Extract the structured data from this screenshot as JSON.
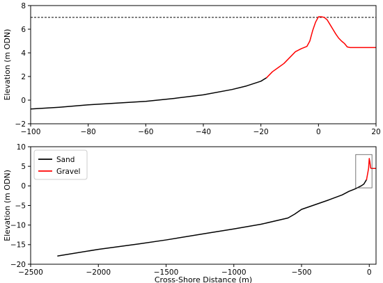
{
  "chart_data": [
    {
      "type": "line",
      "title": "",
      "xlabel": "",
      "ylabel": "Elevation (m ODN)",
      "xlim": [
        -100,
        20
      ],
      "ylim": [
        -2,
        8
      ],
      "xticks": [
        -100,
        -80,
        -60,
        -40,
        -20,
        0,
        20
      ],
      "yticks": [
        -2,
        0,
        2,
        4,
        6,
        8
      ],
      "grid": false,
      "reference_line": {
        "y": 7.0,
        "style": "dashed",
        "color": "#000000"
      },
      "series": [
        {
          "color": "#000000",
          "x": [
            -100,
            -90,
            -80,
            -70,
            -60,
            -50,
            -40,
            -30,
            -25,
            -20,
            -18
          ],
          "y": [
            -0.75,
            -0.6,
            -0.4,
            -0.25,
            -0.1,
            0.15,
            0.45,
            0.9,
            1.2,
            1.6,
            1.9
          ]
        },
        {
          "color": "#ff0000",
          "x": [
            -18,
            -16,
            -14,
            -12,
            -10,
            -8,
            -6,
            -4,
            -3,
            -2,
            -1,
            0,
            1,
            2,
            3,
            4,
            5,
            6,
            7,
            8,
            9,
            10,
            11,
            15,
            20
          ],
          "y": [
            1.9,
            2.4,
            2.75,
            3.1,
            3.6,
            4.1,
            4.35,
            4.55,
            5.0,
            5.9,
            6.6,
            7.05,
            7.05,
            7.0,
            6.8,
            6.4,
            6.0,
            5.6,
            5.25,
            5.0,
            4.8,
            4.5,
            4.45,
            4.45,
            4.45
          ]
        }
      ]
    },
    {
      "type": "line",
      "title": "",
      "xlabel": "Cross-Shore Distance (m)",
      "ylabel": "Elevation (m ODN)",
      "xlim": [
        -2500,
        50
      ],
      "ylim": [
        -20,
        10
      ],
      "xticks": [
        -2500,
        -2000,
        -1500,
        -1000,
        -500,
        0
      ],
      "yticks": [
        -20,
        -15,
        -10,
        -5,
        0,
        5,
        10
      ],
      "grid": false,
      "legend": {
        "position": "top-left"
      },
      "inset_box": {
        "x": [
          -100,
          20
        ],
        "y": [
          -0.5,
          8
        ]
      },
      "series": [
        {
          "name": "Sand",
          "color": "#000000",
          "x": [
            -2300,
            -2000,
            -1700,
            -1500,
            -1200,
            -1000,
            -800,
            -600,
            -550,
            -500,
            -450,
            -300,
            -200,
            -150,
            -100,
            -60,
            -40,
            -20
          ],
          "y": [
            -17.9,
            -16.2,
            -14.8,
            -13.8,
            -12.1,
            -11.0,
            -9.8,
            -8.2,
            -7.2,
            -6.0,
            -5.4,
            -3.6,
            -2.3,
            -1.4,
            -0.7,
            0.0,
            0.45,
            1.6
          ]
        },
        {
          "name": "Gravel",
          "color": "#ff0000",
          "x": [
            -20,
            -10,
            -5,
            0,
            5,
            10,
            15,
            20,
            30,
            50
          ],
          "y": [
            1.6,
            3.5,
            4.5,
            7.0,
            6.0,
            4.6,
            4.45,
            4.45,
            4.45,
            4.45
          ]
        }
      ]
    }
  ]
}
